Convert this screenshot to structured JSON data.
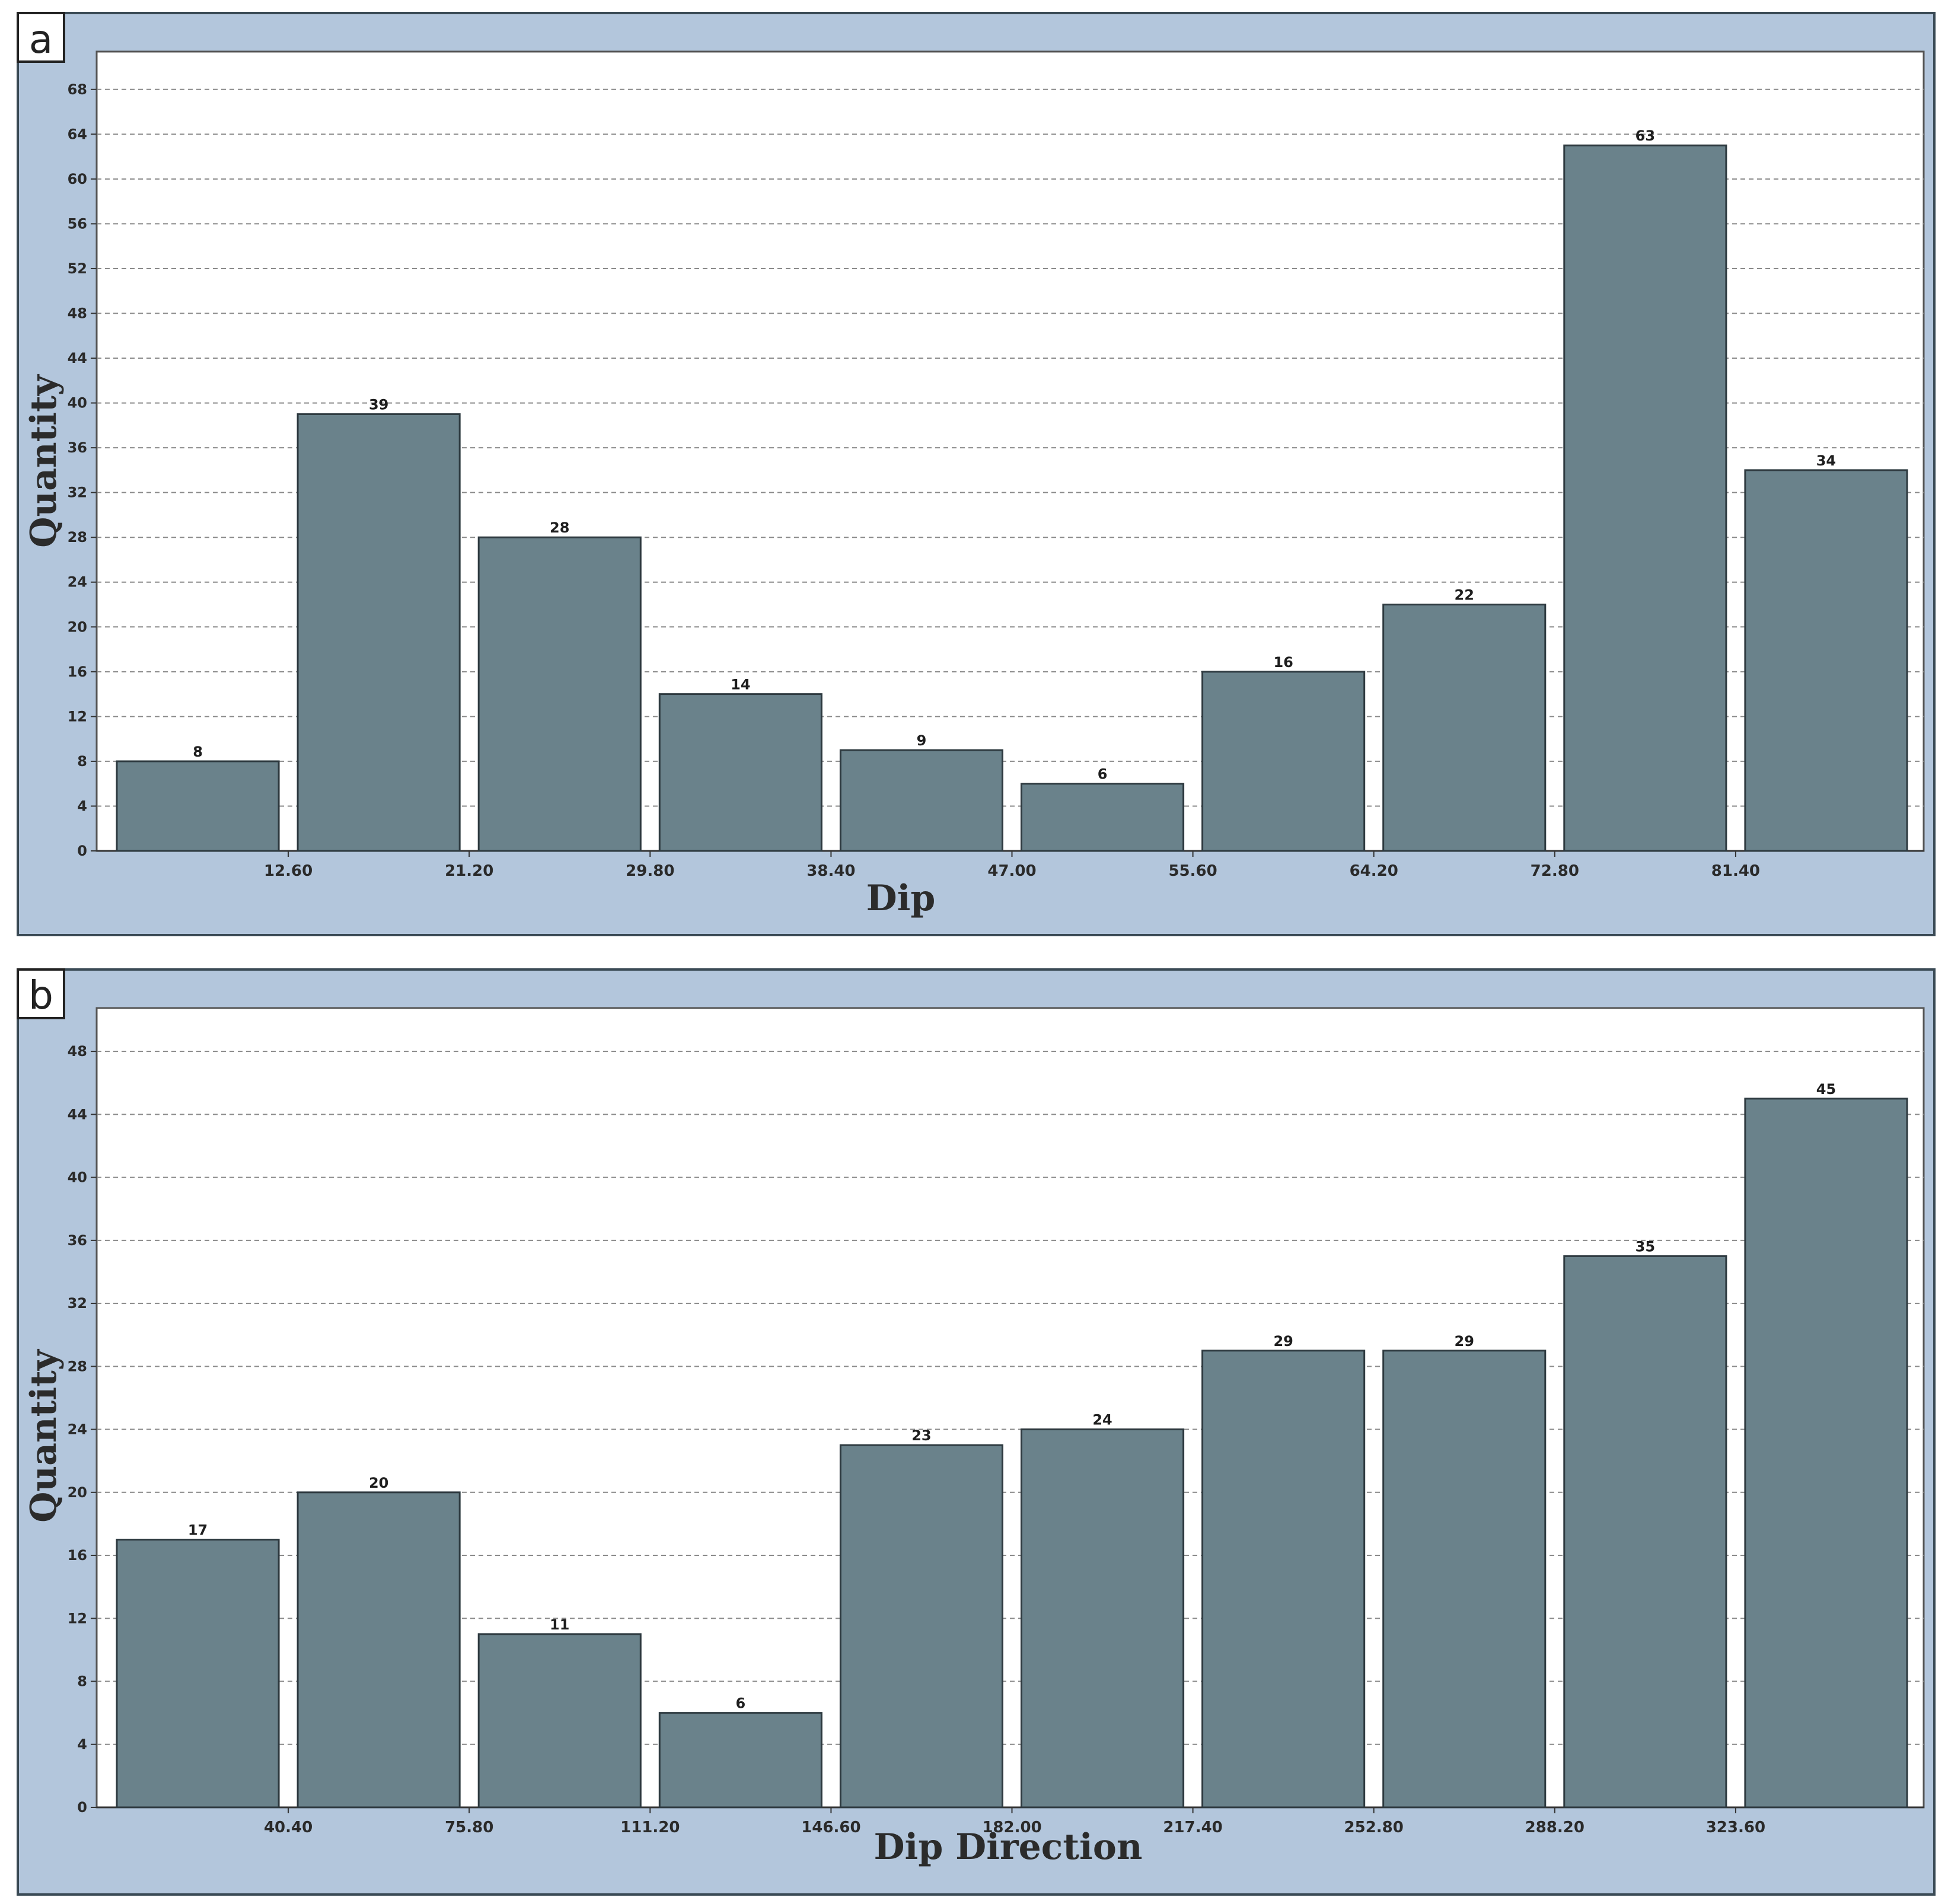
{
  "colors": {
    "frame_bg": "#b3c6dc",
    "plot_bg": "#ffffff",
    "bar_fill": "#6a828b",
    "bar_stroke": "#2e3a40",
    "grid": "#8a8a8a"
  },
  "chart_data": [
    {
      "panel_label": "a",
      "type": "bar",
      "xlabel": "Dip",
      "ylabel": "Quantity",
      "x_ticks": [
        "12.60",
        "21.20",
        "29.80",
        "38.40",
        "47.00",
        "55.60",
        "64.20",
        "72.80",
        "81.40"
      ],
      "y_ticks": [
        0,
        4,
        8,
        12,
        16,
        20,
        24,
        28,
        32,
        36,
        40,
        44,
        48,
        52,
        56,
        60,
        64,
        68
      ],
      "ylim": [
        0,
        70
      ],
      "values": [
        8,
        39,
        28,
        14,
        9,
        6,
        16,
        22,
        63,
        34
      ],
      "value_labels": [
        "8",
        "39",
        "28",
        "14",
        "9",
        "6",
        "16",
        "22",
        "63",
        "34"
      ],
      "grid": true
    },
    {
      "panel_label": "b",
      "type": "bar",
      "xlabel": "Dip Direction",
      "ylabel": "Quantity",
      "x_ticks": [
        "40.40",
        "75.80",
        "111.20",
        "146.60",
        "182.00",
        "217.40",
        "252.80",
        "288.20",
        "323.60"
      ],
      "y_ticks": [
        0,
        4,
        8,
        12,
        16,
        20,
        24,
        28,
        32,
        36,
        40,
        44,
        48
      ],
      "ylim": [
        0,
        50
      ],
      "values": [
        17,
        20,
        11,
        6,
        23,
        24,
        29,
        29,
        35,
        45
      ],
      "value_labels": [
        "17",
        "20",
        "11",
        "6",
        "23",
        "24",
        "29",
        "29",
        "35",
        "45"
      ],
      "grid": true
    }
  ]
}
